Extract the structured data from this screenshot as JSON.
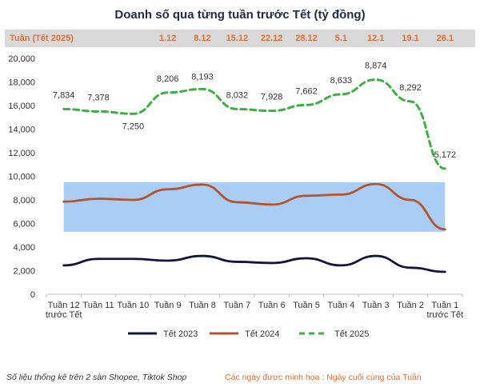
{
  "chart_data": {
    "type": "line",
    "title": "Doanh số qua từng tuần trước Tết (tỷ đồng)",
    "week_band_label": "Tuần (Tết 2025)",
    "week_dates": [
      "",
      "",
      "",
      "1.12",
      "8.12",
      "15.12",
      "22.12",
      "28.12",
      "5.1",
      "12.1",
      "19.1",
      "26.1"
    ],
    "categories": [
      [
        "Tuần 12",
        "trước Tết"
      ],
      [
        "Tuần 11"
      ],
      [
        "Tuần 10"
      ],
      [
        "Tuần 9"
      ],
      [
        "Tuần 8"
      ],
      [
        "Tuần 7"
      ],
      [
        "Tuần 6"
      ],
      [
        "Tuần 5"
      ],
      [
        "Tuần 4"
      ],
      [
        "Tuần 3"
      ],
      [
        "Tuần 2"
      ],
      [
        "Tuần 1",
        "trước Tết"
      ]
    ],
    "ylim": [
      0,
      20000
    ],
    "yticks": [
      0,
      2000,
      4000,
      6000,
      8000,
      10000,
      12000,
      14000,
      16000,
      18000,
      20000
    ],
    "ytick_labels": [
      "0",
      "2,000",
      "4,000",
      "6,000",
      "8,000",
      "10,000",
      "12,000",
      "14,000",
      "16,000",
      "18,000",
      "20,000"
    ],
    "highlight_band": [
      5300,
      9500
    ],
    "series": [
      {
        "name": "Tết 2023",
        "color": "#14143c",
        "dash": false,
        "values": [
          2450,
          3000,
          3000,
          2850,
          3250,
          2750,
          2650,
          3050,
          2450,
          3250,
          2250,
          1900
        ]
      },
      {
        "name": "Tết 2024",
        "color": "#b5532a",
        "dash": false,
        "values": [
          7850,
          8100,
          8000,
          8900,
          9300,
          7800,
          7600,
          8350,
          8450,
          9350,
          8000,
          5500
        ]
      },
      {
        "name": "Tết 2025",
        "color": "#3cb043",
        "dash": true,
        "values": [
          15700,
          15500,
          15300,
          17100,
          17400,
          15700,
          15550,
          16050,
          16950,
          18200,
          16350,
          10650
        ]
      }
    ],
    "data_labels": [
      "7,834",
      "7,378",
      "7,250",
      "8,206",
      "8,193",
      "8,032",
      "7,928",
      "7,662",
      "8,633",
      "8,874",
      "8,292",
      "5,172"
    ],
    "data_label_offsets": [
      -14,
      -14,
      19,
      -14,
      -12,
      -14,
      -14,
      -14,
      -14,
      -14,
      -14,
      -14
    ],
    "footer_source": "Số liệu thống kê trên 2 sàn Shopee, Tiktok Shop",
    "footer_note": "Các ngày được minh họa : Ngày cuối cùng của Tuần"
  }
}
